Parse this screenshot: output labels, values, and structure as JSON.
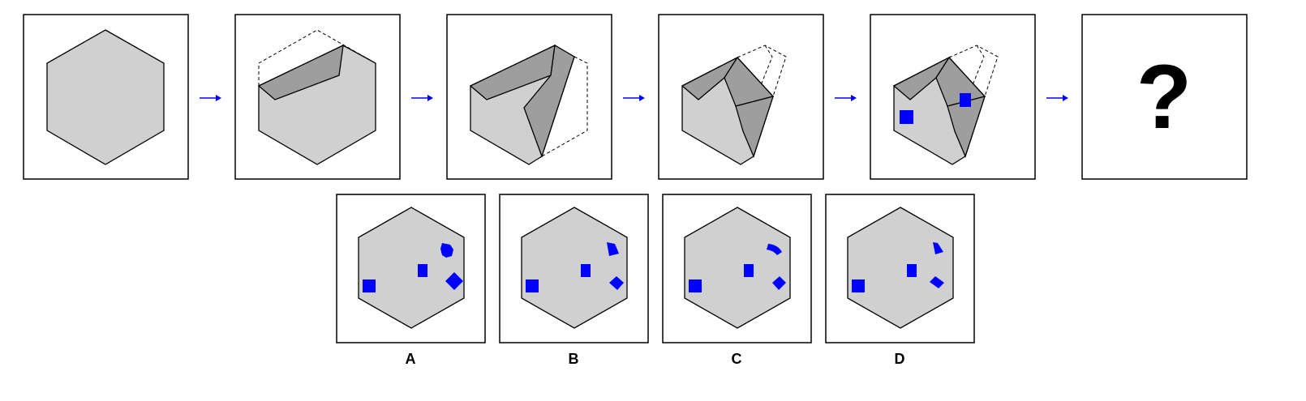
{
  "puzzle": {
    "question_mark": "?",
    "options": [
      {
        "label": "A"
      },
      {
        "label": "B"
      },
      {
        "label": "C"
      },
      {
        "label": "D"
      }
    ]
  },
  "colors": {
    "hexagon_fill": "#d0d0d0",
    "fold_fill": "#9e9e9e",
    "outline": "#000000",
    "marker": "#0000ff",
    "arrow": "#0000ff"
  },
  "icons": {
    "sequence_arrow": "right-arrow-icon",
    "marker": "blue-square-marker"
  }
}
